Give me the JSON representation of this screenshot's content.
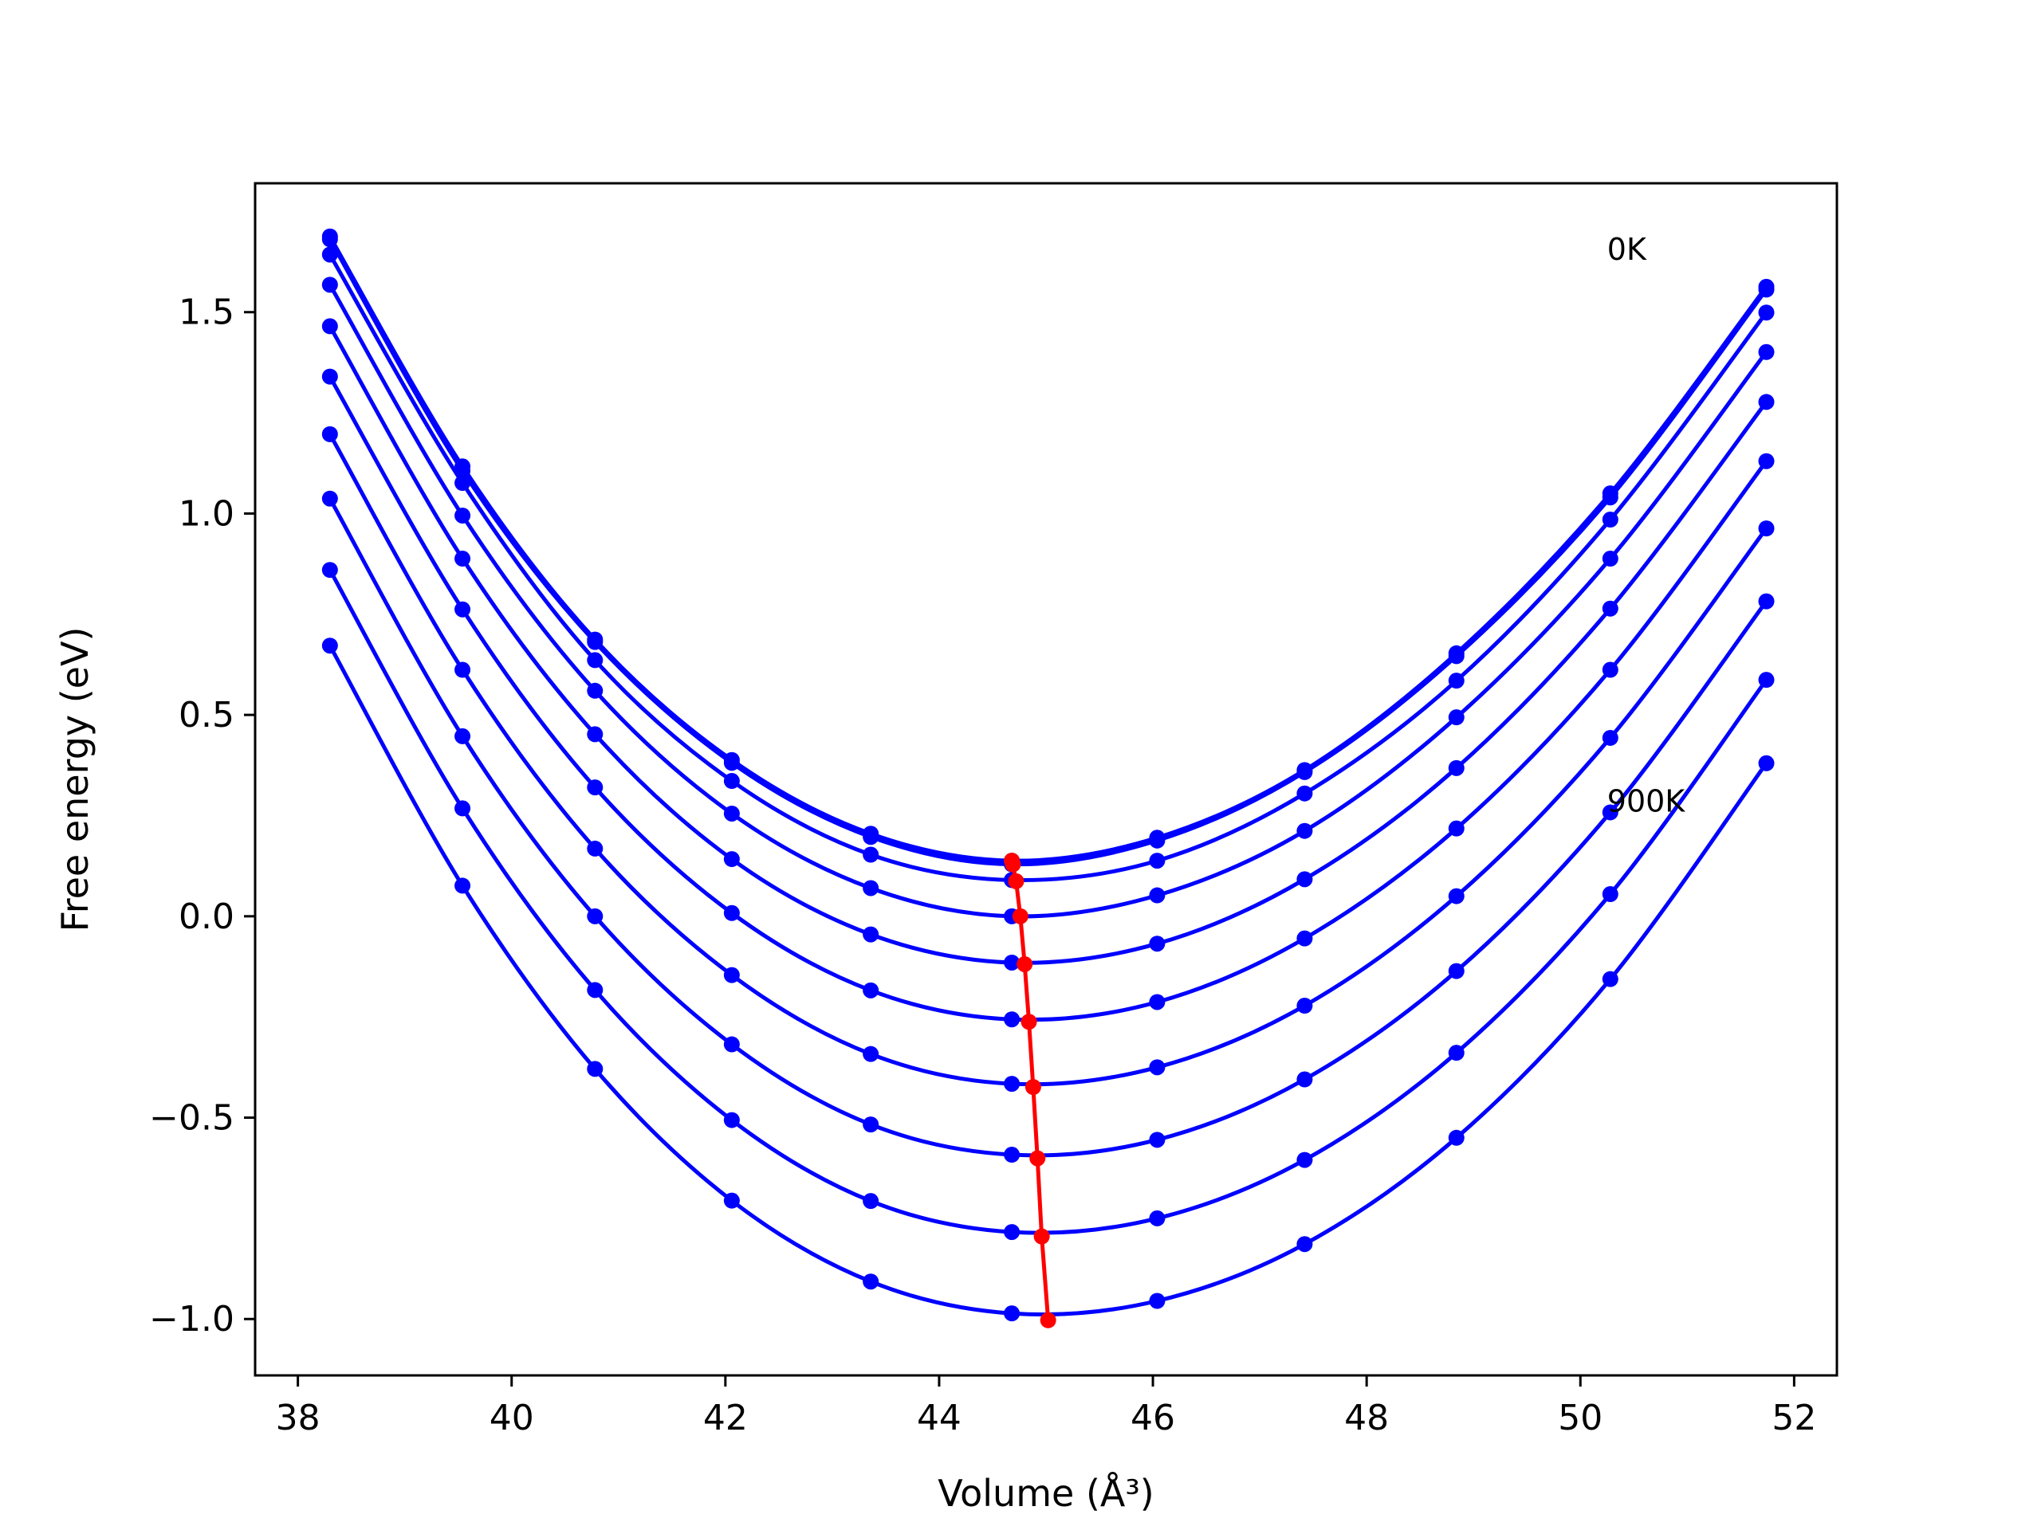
{
  "chart_data": {
    "type": "line",
    "xlabel": "Volume (Å³)",
    "ylabel": "Free energy (eV)",
    "xlim": [
      37.6,
      52.4
    ],
    "ylim": [
      -1.14,
      1.82
    ],
    "xticks": [
      38,
      40,
      42,
      44,
      46,
      48,
      50,
      52
    ],
    "yticks": [
      -1.0,
      -0.5,
      0.0,
      0.5,
      1.0,
      1.5
    ],
    "ytick_labels": [
      "−1.0",
      "−0.5",
      "0.0",
      "0.5",
      "1.0",
      "1.5"
    ],
    "grid": false,
    "colors": {
      "curves": "#0000ff",
      "minima": "#ff0000",
      "frame": "#000000"
    },
    "annotations": [
      {
        "text": "0K",
        "x": 50.25,
        "y": 1.63
      },
      {
        "text": "900K",
        "x": 50.25,
        "y": 0.26
      }
    ],
    "series": [
      {
        "x": [
          38.3,
          39.54,
          40.78,
          42.06,
          43.36,
          44.68,
          46.04,
          47.42,
          48.84,
          50.28,
          51.74
        ],
        "values": [
          1.688,
          1.117,
          0.687,
          0.388,
          0.205,
          0.138,
          0.195,
          0.363,
          0.653,
          1.05,
          1.563
        ],
        "min_x": 44.68,
        "min_y": 0.138
      },
      {
        "x": [
          38.3,
          39.54,
          40.78,
          42.06,
          43.36,
          44.68,
          46.04,
          47.42,
          48.84,
          50.28,
          51.74
        ],
        "values": [
          1.681,
          1.106,
          0.681,
          0.381,
          0.197,
          0.129,
          0.188,
          0.358,
          0.646,
          1.04,
          1.556
        ],
        "min_x": 44.69,
        "min_y": 0.129
      },
      {
        "x": [
          38.3,
          39.54,
          40.78,
          42.06,
          43.36,
          44.68,
          46.04,
          47.42,
          48.84,
          50.28,
          51.74
        ],
        "values": [
          1.643,
          1.076,
          0.636,
          0.336,
          0.153,
          0.09,
          0.138,
          0.305,
          0.585,
          0.985,
          1.499
        ],
        "min_x": 44.72,
        "min_y": 0.087
      },
      {
        "x": [
          38.3,
          39.54,
          40.78,
          42.06,
          43.36,
          44.68,
          46.04,
          47.42,
          48.84,
          50.28,
          51.74
        ],
        "values": [
          1.568,
          0.995,
          0.56,
          0.255,
          0.07,
          0.0,
          0.052,
          0.212,
          0.494,
          0.888,
          1.401
        ],
        "min_x": 44.76,
        "min_y": 0.0
      },
      {
        "x": [
          38.3,
          39.54,
          40.78,
          42.06,
          43.36,
          44.68,
          46.04,
          47.42,
          48.84,
          50.28,
          51.74
        ],
        "values": [
          1.465,
          0.888,
          0.452,
          0.142,
          -0.045,
          -0.115,
          -0.068,
          0.092,
          0.368,
          0.764,
          1.277
        ],
        "min_x": 44.8,
        "min_y": -0.119
      },
      {
        "x": [
          38.3,
          39.54,
          40.78,
          42.06,
          43.36,
          44.68,
          46.04,
          47.42,
          48.84,
          50.28,
          51.74
        ],
        "values": [
          1.34,
          0.762,
          0.32,
          0.008,
          -0.184,
          -0.256,
          -0.213,
          -0.055,
          0.218,
          0.612,
          1.13
        ],
        "min_x": 44.84,
        "min_y": -0.262
      },
      {
        "x": [
          38.3,
          39.54,
          40.78,
          42.06,
          43.36,
          44.68,
          46.04,
          47.42,
          48.84,
          50.28,
          51.74
        ],
        "values": [
          1.197,
          0.612,
          0.168,
          -0.146,
          -0.342,
          -0.416,
          -0.375,
          -0.222,
          0.05,
          0.443,
          0.963
        ],
        "min_x": 44.88,
        "min_y": -0.424
      },
      {
        "x": [
          38.3,
          39.54,
          40.78,
          42.06,
          43.36,
          44.68,
          46.04,
          47.42,
          48.84,
          50.28,
          51.74
        ],
        "values": [
          1.037,
          0.447,
          0.0,
          -0.318,
          -0.517,
          -0.592,
          -0.555,
          -0.405,
          -0.136,
          0.258,
          0.782
        ],
        "min_x": 44.92,
        "min_y": -0.601
      },
      {
        "x": [
          38.3,
          39.54,
          40.78,
          42.06,
          43.36,
          44.68,
          46.04,
          47.42,
          48.84,
          50.28,
          51.74
        ],
        "values": [
          0.86,
          0.268,
          -0.183,
          -0.506,
          -0.707,
          -0.784,
          -0.75,
          -0.605,
          -0.339,
          0.055,
          0.587
        ],
        "min_x": 44.96,
        "min_y": -0.795
      },
      {
        "x": [
          38.3,
          39.54,
          40.78,
          42.06,
          43.36,
          44.68,
          46.04,
          47.42,
          48.84,
          50.28,
          51.74
        ],
        "values": [
          0.672,
          0.076,
          -0.379,
          -0.706,
          -0.907,
          -0.986,
          -0.955,
          -0.814,
          -0.55,
          -0.156,
          0.38
        ],
        "min_x": 45.02,
        "min_y": -1.003
      }
    ]
  }
}
